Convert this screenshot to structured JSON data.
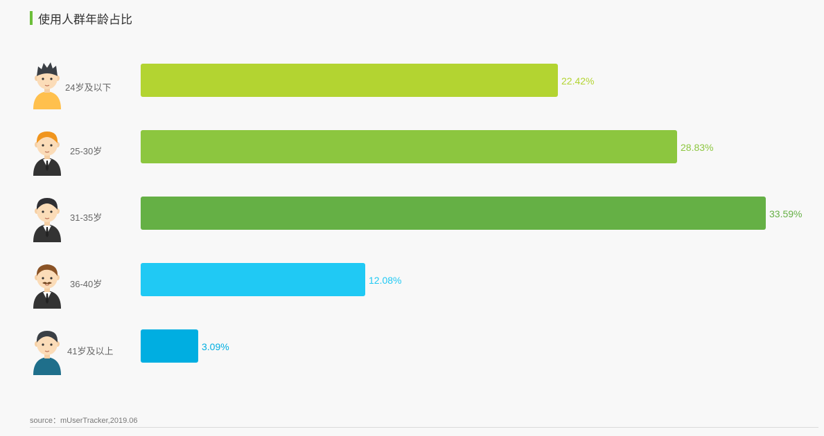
{
  "title": "使用人群年龄占比",
  "source": "source：mUserTracker,2019.06",
  "chart_data": {
    "type": "bar",
    "orientation": "horizontal",
    "title": "使用人群年龄占比",
    "categories": [
      "24岁及以下",
      "25-30岁",
      "31-35岁",
      "36-40岁",
      "41岁及以上"
    ],
    "values": [
      22.42,
      28.83,
      33.59,
      12.08,
      3.09
    ],
    "value_labels": [
      "22.42%",
      "28.83%",
      "33.59%",
      "12.08%",
      "3.09%"
    ],
    "unit": "%",
    "colors": [
      "#b3d431",
      "#8cc63f",
      "#65b045",
      "#20c9f4",
      "#00aee1"
    ],
    "avatar_icons": [
      "young-man-icon",
      "ginger-man-icon",
      "suit-man-icon",
      "mustache-man-icon",
      "older-man-icon"
    ],
    "grid": false,
    "legend": "none"
  }
}
